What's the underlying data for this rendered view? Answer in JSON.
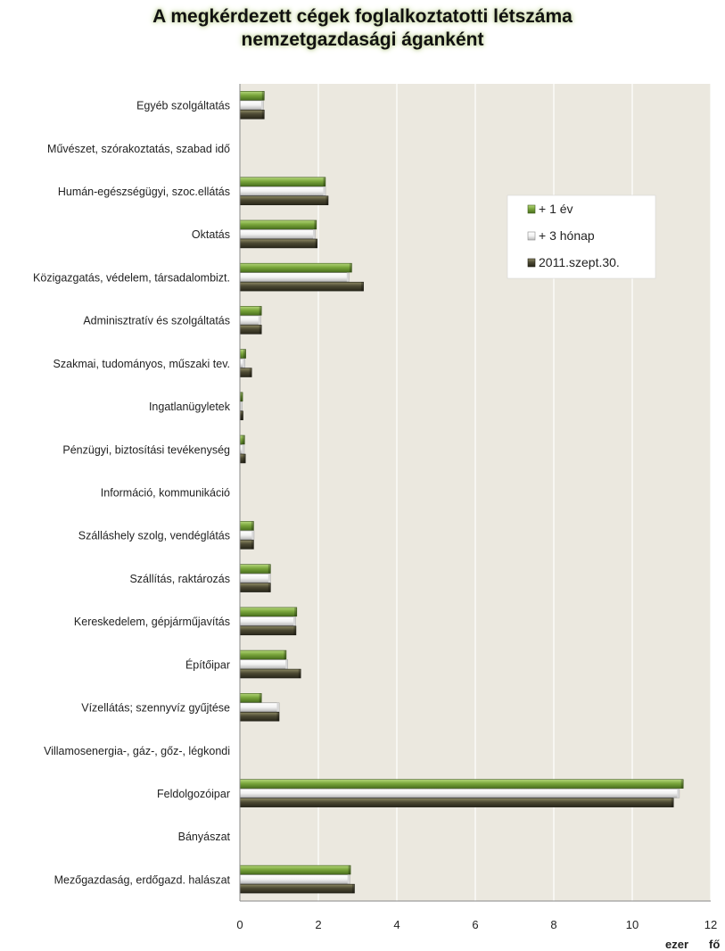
{
  "chart_data": {
    "type": "bar",
    "orientation": "horizontal",
    "title_lines": [
      "A megkérdezett cégek foglalkoztatotti létszáma",
      "nemzetgazdasági áganként"
    ],
    "unit_parts": [
      "ezer",
      "fő"
    ],
    "xlim": [
      0,
      12
    ],
    "xticks": [
      "0",
      "2",
      "4",
      "6",
      "8",
      "10",
      "12"
    ],
    "grid": true,
    "legend_position": "upper-right-inside",
    "categories": [
      "Egyéb szolgáltatás",
      "Művészet, szórakoztatás, szabad idő",
      "Humán-egészségügyi, szoc.ellátás",
      "Oktatás",
      "Közigazgatás, védelem, társadalombizt.",
      "Adminisztratív és szolgáltatás",
      "Szakmai, tudományos, műszaki tev.",
      "Ingatlanügyletek",
      "Pénzügyi, biztosítási  tevékenység",
      "Információ, kommunikáció",
      "Szálláshely szolg, vendéglátás",
      "Szállítás, raktározás",
      "Kereskedelem, gépjárműjavítás",
      "Építőipar",
      "Vízellátás; szennyvíz gyűjtése",
      "Villamosenergia-, gáz-, gőz-, légkondi",
      "Feldolgozóipar",
      "Bányászat",
      "Mezőgazdaság, erdőgazd. halászat"
    ],
    "series": [
      {
        "name": "+ 1 év",
        "color": "#77a03a",
        "values": [
          0.62,
          0,
          2.18,
          1.95,
          2.85,
          0.55,
          0.15,
          0.07,
          0.12,
          0,
          0.35,
          0.78,
          1.45,
          1.18,
          0.55,
          0,
          11.3,
          0,
          2.82
        ]
      },
      {
        "name": "+ 3 hónap",
        "color": "#f4f4f4",
        "values": [
          0.6,
          0,
          2.18,
          1.92,
          2.78,
          0.53,
          0.13,
          0.06,
          0.11,
          0,
          0.36,
          0.78,
          1.42,
          1.22,
          1.0,
          0,
          11.2,
          0,
          2.8
        ]
      },
      {
        "name": "2011.szept.30.",
        "color": "#4a4731",
        "values": [
          0.62,
          0,
          2.25,
          1.97,
          3.15,
          0.55,
          0.3,
          0.08,
          0.14,
          0,
          0.35,
          0.78,
          1.43,
          1.55,
          1.0,
          0,
          11.05,
          0,
          2.92
        ]
      }
    ]
  }
}
